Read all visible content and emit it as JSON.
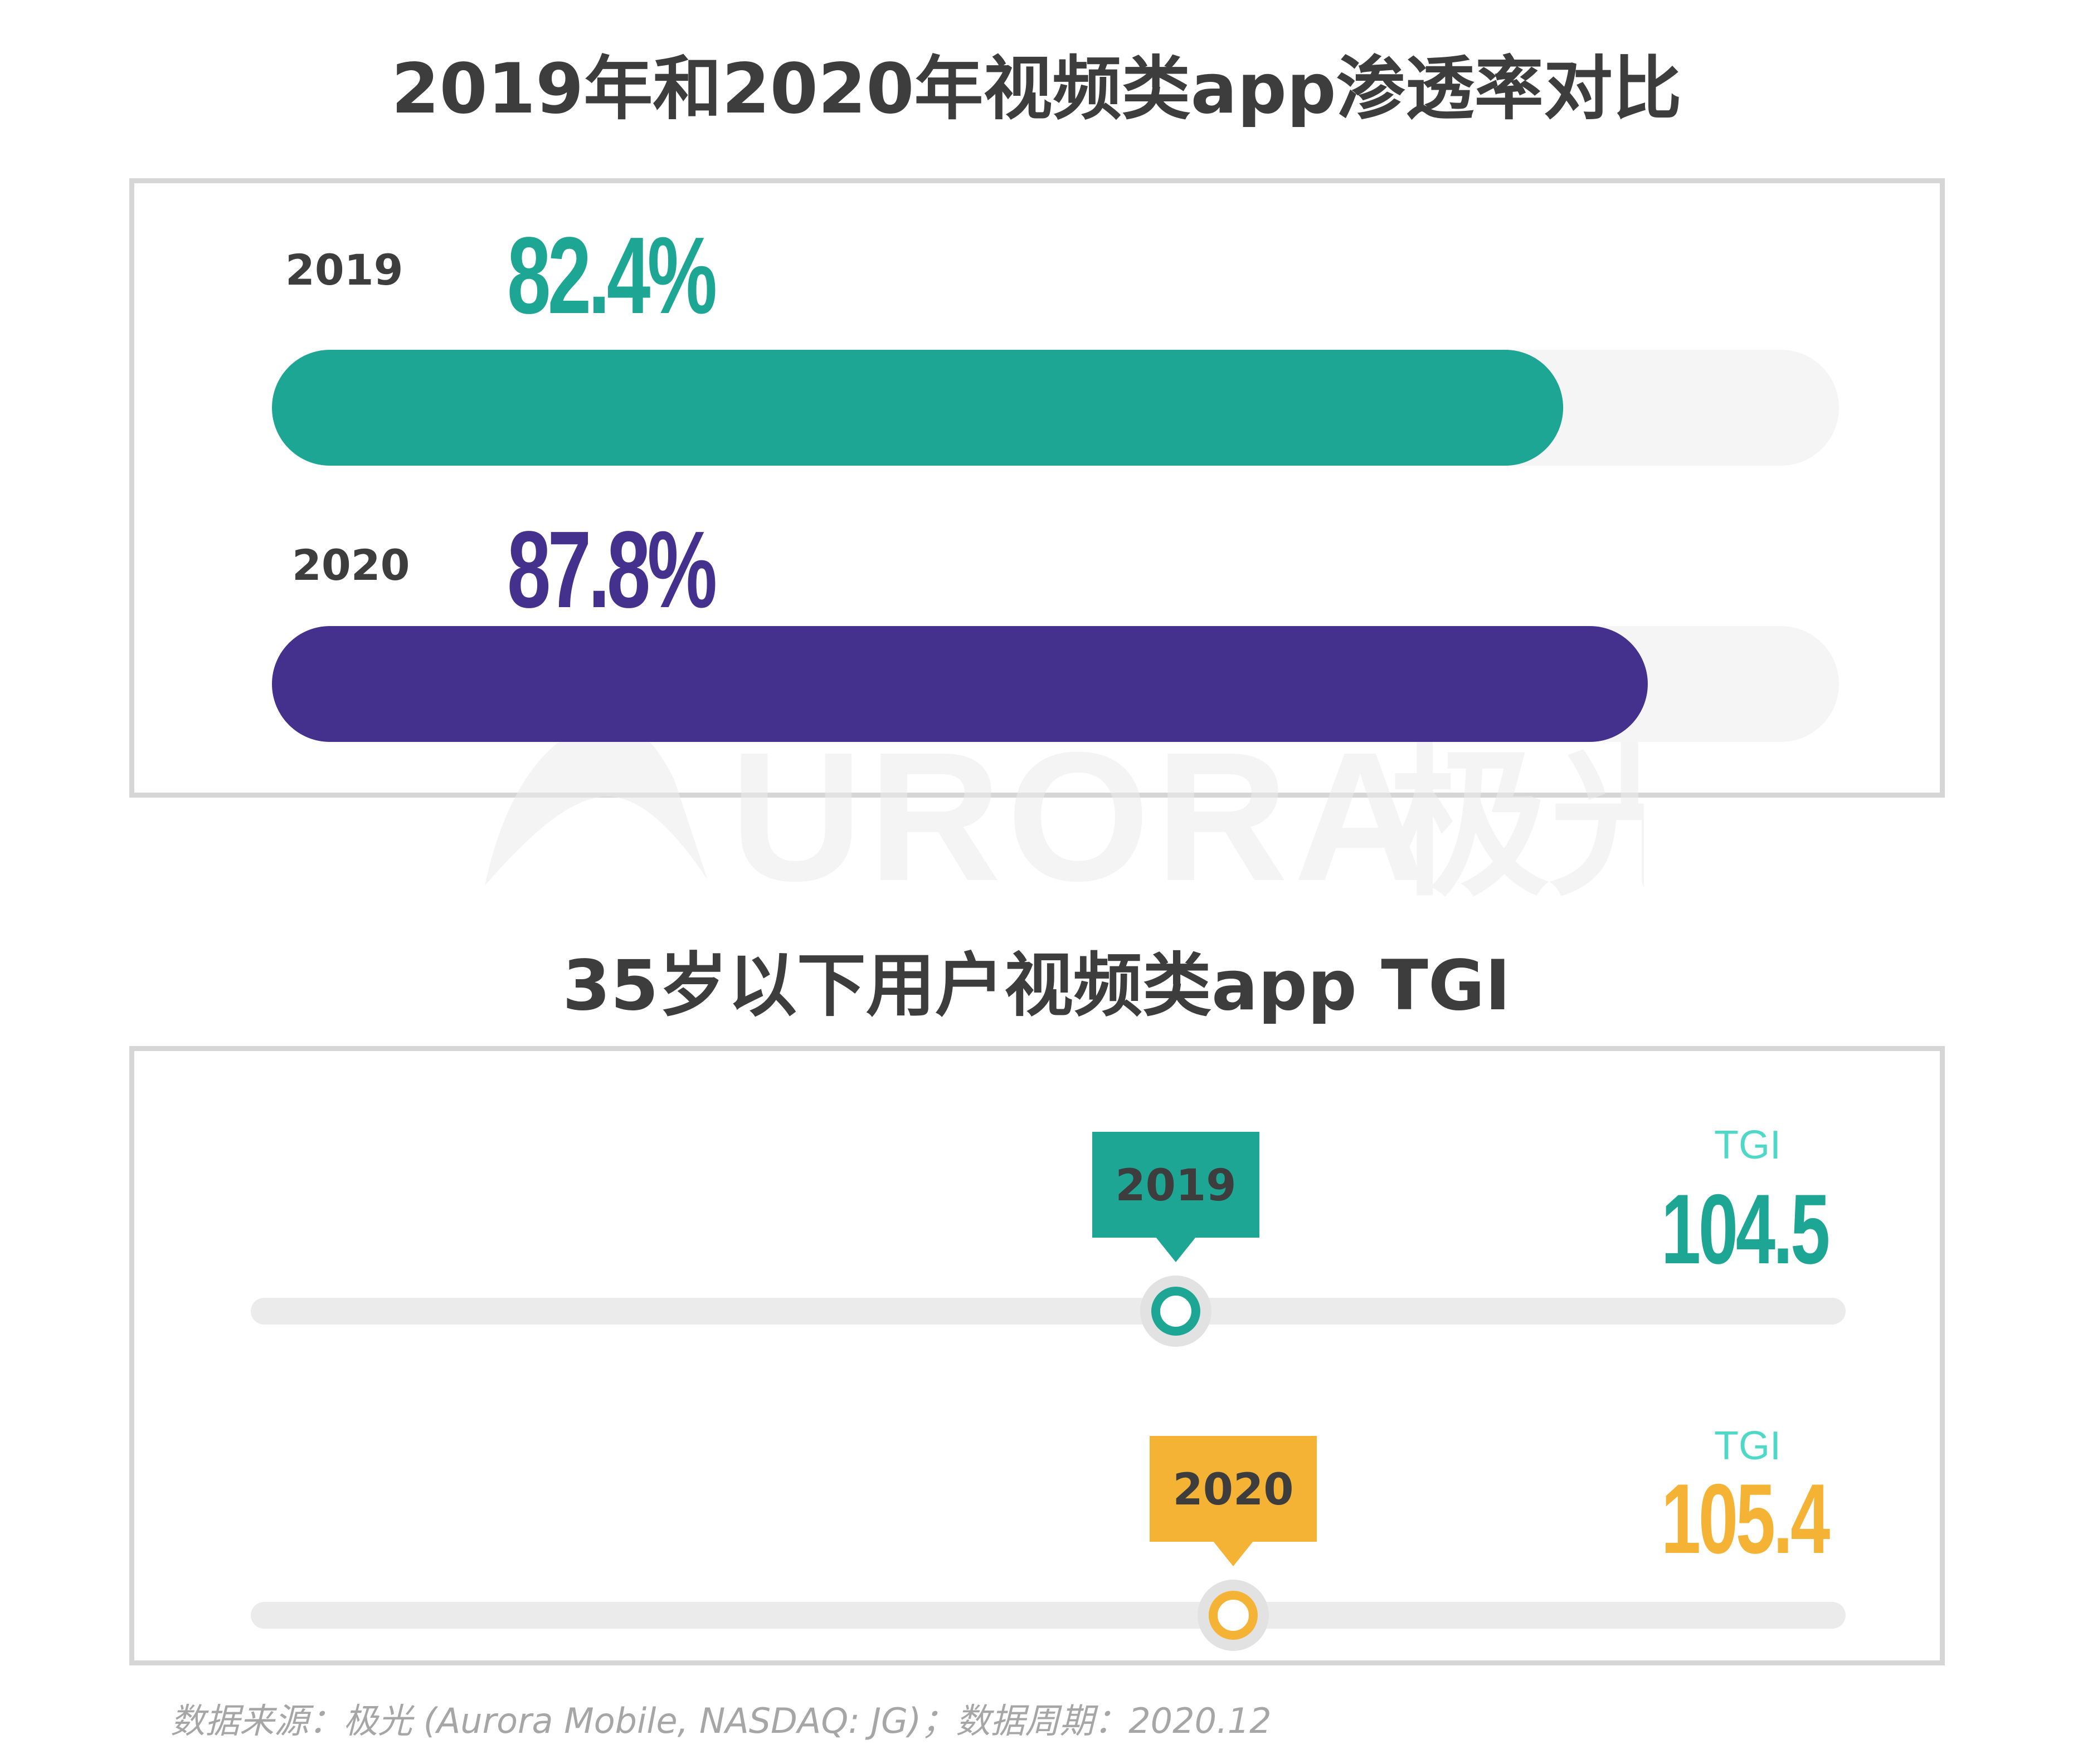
{
  "chart_data": [
    {
      "type": "bar",
      "title": "2019年和2020年视频类app渗透率对比",
      "categories": [
        "2019",
        "2020"
      ],
      "values": [
        82.4,
        87.8
      ],
      "value_labels": [
        "82.4%",
        "87.8%"
      ],
      "unit": "%",
      "xlim": [
        0,
        100
      ],
      "colors": [
        "#1ea694",
        "#44318d"
      ],
      "track_color": "#f5f5f5",
      "orientation": "horizontal"
    },
    {
      "type": "scatter",
      "title": "35岁以下用户视频类app TGI",
      "categories": [
        "2019",
        "2020"
      ],
      "values": [
        104.5,
        105.4
      ],
      "value_labels": [
        "104.5",
        "105.4"
      ],
      "value_caption": "TGI",
      "colors": [
        "#1ea694",
        "#f5b335"
      ],
      "track_color": "#ebebeb"
    }
  ],
  "watermark": {
    "text": "URORA",
    "text_cn": "极光"
  },
  "source": "数据来源：极光 (Aurora Mobile, NASDAQ: JG)；数据周期：2020.12"
}
